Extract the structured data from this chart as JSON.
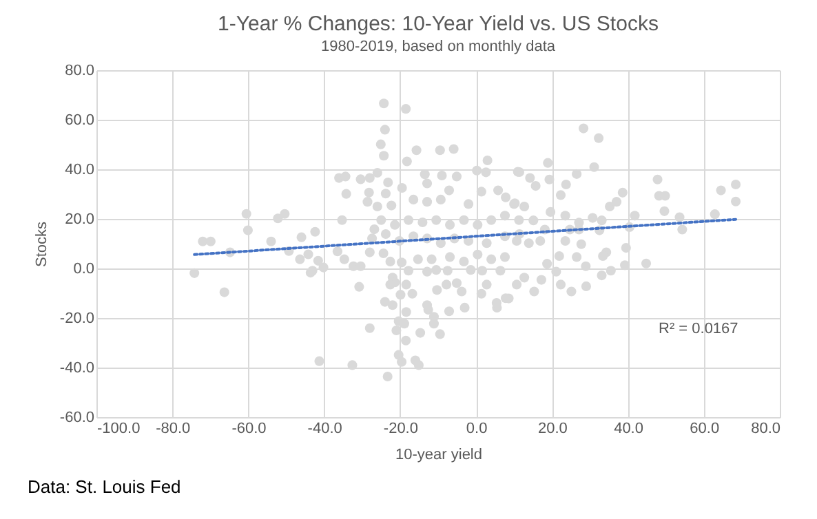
{
  "chart_data": {
    "type": "scatter",
    "title": "1-Year % Changes: 10-Year Yield vs. US Stocks",
    "subtitle": "1980-2019, based on monthly data",
    "xlabel": "10-year yield",
    "ylabel": "Stocks",
    "xlim": [
      -100,
      80
    ],
    "ylim": [
      -60,
      80
    ],
    "xticks": [
      {
        "value": -100,
        "label": "-100.0"
      },
      {
        "value": -80,
        "label": "-80.0"
      },
      {
        "value": -60,
        "label": "-60.0"
      },
      {
        "value": -40,
        "label": "-40.0"
      },
      {
        "value": -20,
        "label": "-20.0"
      },
      {
        "value": 0,
        "label": "0.0"
      },
      {
        "value": 20,
        "label": "20.0"
      },
      {
        "value": 40,
        "label": "40.0"
      },
      {
        "value": 60,
        "label": "60.0"
      },
      {
        "value": 80,
        "label": "80.0"
      }
    ],
    "yticks": [
      {
        "value": -60,
        "label": "-60.0"
      },
      {
        "value": -40,
        "label": "-40.0"
      },
      {
        "value": -20,
        "label": "-20.0"
      },
      {
        "value": 0,
        "label": "0.0"
      },
      {
        "value": 20,
        "label": "20.0"
      },
      {
        "value": 40,
        "label": "40.0"
      },
      {
        "value": 60,
        "label": "60.0"
      },
      {
        "value": 80,
        "label": "80.0"
      }
    ],
    "grid": true,
    "series": [
      {
        "type": "scatter",
        "marker": "circle",
        "color": "#d9d9d9",
        "x": [
          -74.2,
          -72.0,
          -69.9,
          -66.3,
          -64.8,
          -60.5,
          -60.1,
          -54.0,
          -52.2,
          -50.4,
          -49.3,
          -46.0,
          -46.4,
          -44.2,
          -42.4,
          -43.6,
          -41.6,
          -40.2,
          -41.3,
          -24.3,
          -18.5,
          -24.0,
          -25.1,
          -24.3,
          -15.7,
          -9.5,
          -5.9,
          -18.2,
          -36.1,
          -34.4,
          -30.4,
          -28.0,
          -26.0,
          -23.2,
          -19.5,
          -34.2,
          -28.2,
          -23.8,
          -28.6,
          -26.0,
          -22.3,
          -13.5,
          -12.9,
          -9.0,
          -5.1,
          -7.1,
          -16.5,
          -12.9,
          -9.3,
          -2.0,
          1.4,
          3.0,
          0.2,
          2.6,
          5.8,
          11.0,
          10.0,
          -35.3,
          -26.8,
          -25.0,
          -21.4,
          -17.8,
          -14.1,
          -10.5,
          -6.9,
          -3.2,
          0.4,
          4.0,
          7.6,
          11.3,
          -27.4,
          -23.8,
          -20.2,
          -16.5,
          -12.9,
          -9.3,
          -5.7,
          -2.0,
          2.8,
          7.6,
          10.7,
          -36.5,
          -34.7,
          -32.3,
          -30.4,
          -43.1,
          -28.0,
          -24.4,
          -22.6,
          -19.6,
          -15.3,
          -11.7,
          -6.9,
          -3.2,
          0.4,
          4.0,
          7.6,
          -17.8,
          -12.9,
          -10.5,
          -7.5,
          -1.4,
          1.6,
          6.4,
          10.7,
          -30.8,
          -22.0,
          -21.4,
          -22.6,
          -18.4,
          -10.3,
          -7.8,
          -5.1,
          -3.8,
          -3.0,
          1.4,
          2.8,
          5.5,
          8.6,
          -24.0,
          -22.0,
          -19.9,
          -16.8,
          -18.4,
          -12.9,
          -12.6,
          -11.1,
          -7.1,
          -20.4,
          -21.0,
          -18.9,
          -14.7,
          -9.5,
          -11.1,
          -28.0,
          -18.5,
          -20.4,
          -19.6,
          -16.0,
          -15.1,
          -32.6,
          -23.3,
          28.3,
          32.3,
          18.9,
          31.1,
          11.4,
          14.2,
          19.3,
          26.5,
          23.7,
          15.7,
          22.3,
          47.8,
          48.2,
          49.8,
          64.5,
          68.4,
          68.4,
          49.6,
          38.6,
          35.2,
          37.0,
          41.8,
          53.6,
          62.9,
          54.3,
          7.8,
          10.2,
          12.7,
          15.1,
          19.6,
          23.5,
          27.1,
          30.7,
          33.1,
          27.1,
          32.5,
          40.4,
          24.7,
          18.1,
          11.4,
          13.9,
          16.9,
          23.5,
          27.7,
          39.5,
          34.3,
          33.4,
          21.9,
          26.5,
          28.9,
          18.7,
          39.2,
          44.8,
          35.5,
          33.1,
          21.1,
          17.2,
          12.7,
          22.3,
          29.0,
          25.1,
          15.3,
          7.8,
          5.4
        ],
        "values": [
          -1.9,
          10.9,
          10.9,
          -9.6,
          6.5,
          22.0,
          15.4,
          10.9,
          20.2,
          22.0,
          7.0,
          12.6,
          3.7,
          5.7,
          14.8,
          -1.7,
          3.1,
          0.4,
          -37.4,
          66.6,
          64.4,
          56.0,
          50.1,
          45.5,
          47.7,
          47.7,
          48.2,
          43.2,
          36.5,
          37.1,
          36.0,
          36.5,
          38.6,
          34.7,
          32.5,
          30.1,
          30.6,
          30.2,
          26.9,
          25.0,
          25.4,
          38.0,
          34.3,
          37.5,
          37.1,
          31.5,
          27.8,
          26.9,
          27.8,
          26.0,
          31.0,
          43.6,
          39.5,
          38.8,
          31.5,
          39.0,
          26.0,
          19.5,
          15.8,
          19.5,
          17.6,
          19.5,
          18.6,
          19.5,
          17.6,
          19.5,
          17.6,
          19.5,
          21.3,
          19.5,
          12.1,
          13.9,
          11.1,
          13.0,
          12.1,
          10.2,
          12.1,
          11.1,
          10.2,
          13.0,
          11.1,
          6.9,
          3.7,
          0.9,
          0.9,
          -0.9,
          6.5,
          6.1,
          2.8,
          2.4,
          3.7,
          3.7,
          4.6,
          2.8,
          5.6,
          3.7,
          4.6,
          -0.9,
          -1.3,
          -0.6,
          -0.9,
          -0.6,
          -0.9,
          -0.9,
          -6.5,
          -7.4,
          -3.7,
          -5.6,
          -6.5,
          -6.5,
          -8.7,
          -6.5,
          -5.9,
          -9.3,
          -15.8,
          -10.2,
          -6.5,
          -15.8,
          -12.1,
          -13.5,
          -14.8,
          -10.6,
          -10.2,
          -17.6,
          -14.8,
          -16.7,
          -19.5,
          -17.3,
          -21.3,
          -25.0,
          -22.3,
          -26.0,
          -26.5,
          -22.3,
          -24.1,
          -29.1,
          -34.9,
          -37.7,
          -37.1,
          -39.0,
          -39.0,
          -43.6,
          56.5,
          52.6,
          42.6,
          40.9,
          38.9,
          36.5,
          35.9,
          38.1,
          33.9,
          33.3,
          29.6,
          35.9,
          29.3,
          29.3,
          31.5,
          33.9,
          27.0,
          23.1,
          30.6,
          25.0,
          26.9,
          21.3,
          20.7,
          21.9,
          15.7,
          28.7,
          26.3,
          25.0,
          19.4,
          22.8,
          21.3,
          18.5,
          20.4,
          19.4,
          15.7,
          15.4,
          16.7,
          15.7,
          15.7,
          13.9,
          10.2,
          11.1,
          11.1,
          9.8,
          8.3,
          6.5,
          5.0,
          5.0,
          4.6,
          0.9,
          1.9,
          1.3,
          2.0,
          -0.9,
          -2.8,
          -1.3,
          -4.6,
          -3.7,
          -6.5,
          -7.2,
          -9.3,
          -9.3,
          -12.0,
          -13.9
        ]
      },
      {
        "type": "line",
        "color": "#4472c4",
        "line_style": "dotted",
        "x": [
          -74.2,
          68.4
        ],
        "values": [
          5.6,
          19.8
        ]
      }
    ],
    "annotations": [
      "R² = 0.0167",
      "Data: St. Louis Fed"
    ]
  }
}
